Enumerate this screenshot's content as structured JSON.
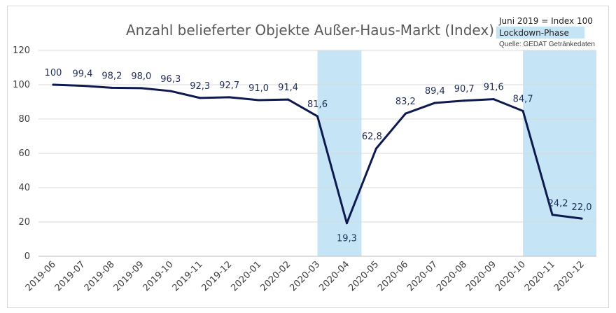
{
  "chart_data": {
    "type": "line",
    "title": "Anzahl belieferter Objekte Außer-Haus-Markt (Index)",
    "note": "Juni 2019 = Index 100",
    "source": "Quelle: GEDAT Getränkedaten",
    "legend": {
      "label": "Lockdown-Phase",
      "color": "#c5e5f6",
      "placement": "top-right"
    },
    "line_color": "#0e1a4f",
    "ylim": [
      0,
      120
    ],
    "yticks": [
      "0",
      "20",
      "40",
      "60",
      "80",
      "100",
      "120"
    ],
    "grid": true,
    "categories": [
      "2019-06",
      "2019-07",
      "2019-08",
      "2019-09",
      "2019-10",
      "2019-11",
      "2019-12",
      "2020-01",
      "2020-02",
      "2020-03",
      "2020-04",
      "2020-05",
      "2020-06",
      "2020-07",
      "2020-08",
      "2020-09",
      "2020-10",
      "2020-11",
      "2020-12"
    ],
    "values": [
      100,
      99.4,
      98.2,
      98.0,
      96.3,
      92.3,
      92.7,
      91.0,
      91.4,
      81.6,
      19.3,
      62.8,
      83.2,
      89.4,
      90.7,
      91.6,
      84.7,
      24.2,
      22.0
    ],
    "data_labels": [
      "100",
      "99,4",
      "98,2",
      "98,0",
      "96,3",
      "92,3",
      "92,7",
      "91,0",
      "91,4",
      "81,6",
      "19,3",
      "62,8",
      "83,2",
      "89,4",
      "90,7",
      "91,6",
      "84,7",
      "24,2",
      "22,0"
    ],
    "lockdown_periods": [
      {
        "from": "2020-03",
        "to": "2020-04"
      },
      {
        "from": "2020-10",
        "to": "2020-12"
      }
    ]
  }
}
